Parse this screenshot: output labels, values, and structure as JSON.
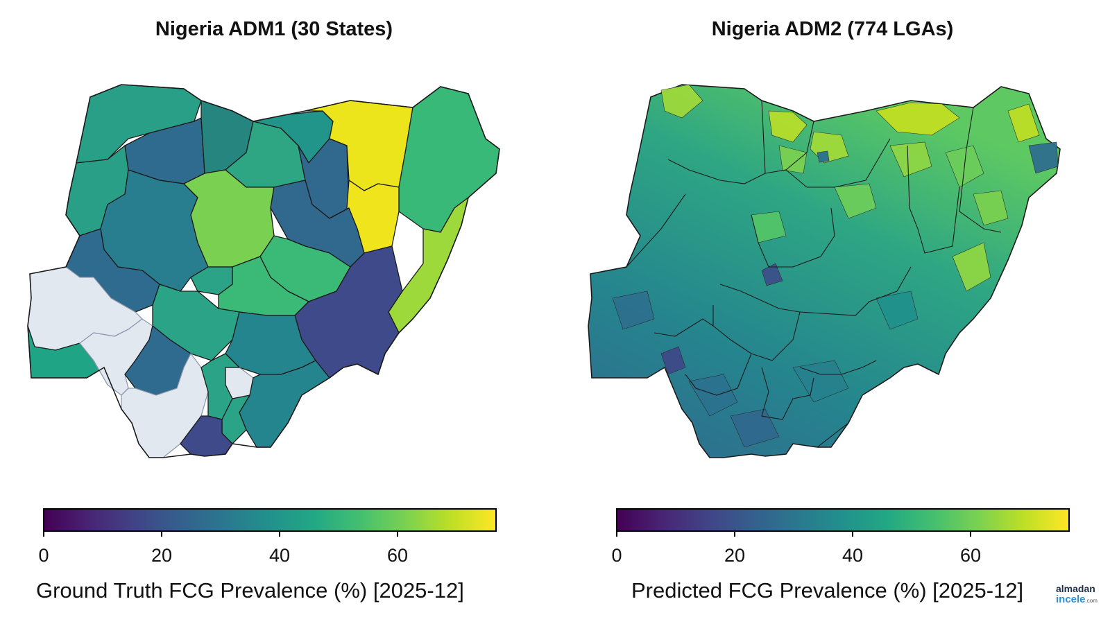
{
  "panels": [
    {
      "title": "Nigeria ADM1 (30 States)",
      "colorbar": {
        "label": "Ground Truth FCG Prevalence (%) [2025-12]",
        "ticks": [
          "0",
          "20",
          "40",
          "60"
        ],
        "range": [
          0,
          75
        ],
        "colormap": "viridis"
      },
      "no_data_color": "#e2e8f0"
    },
    {
      "title": "Nigeria ADM2 (774 LGAs)",
      "colorbar": {
        "label": "Predicted FCG Prevalence (%) [2025-12]",
        "ticks": [
          "0",
          "20",
          "40",
          "60"
        ],
        "range": [
          0,
          75
        ],
        "colormap": "viridis"
      }
    }
  ],
  "watermark": {
    "line1": "almadan",
    "line2": "incele",
    "suffix": ".com"
  },
  "colors": {
    "viridis_low": "#440154",
    "viridis_mid": "#21918c",
    "viridis_high": "#fde725",
    "border": "#1a1a1a"
  }
}
